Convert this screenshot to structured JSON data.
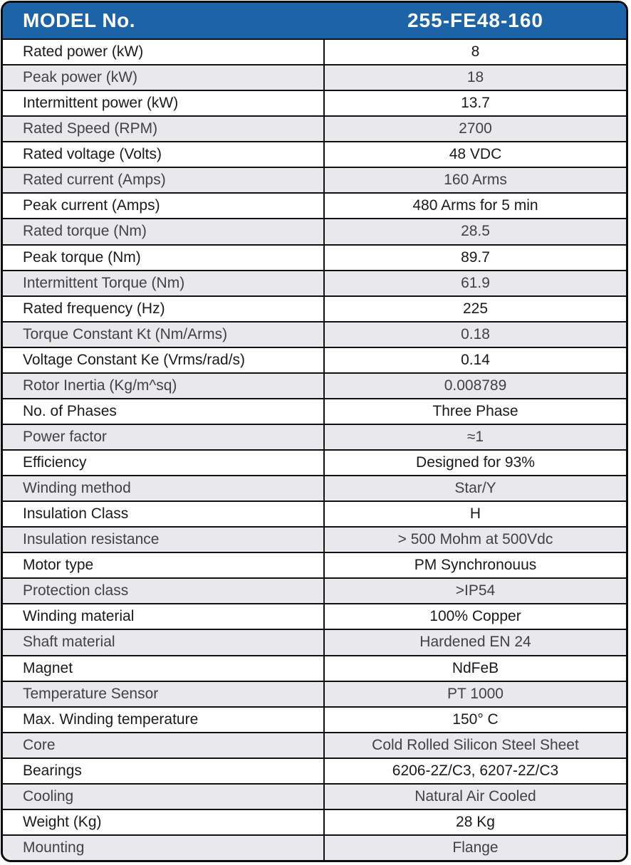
{
  "accent_color": "#1d63a8",
  "alt_row_color": "#e8e8ed",
  "header": {
    "label": "MODEL No.",
    "model": "255-FE48-160"
  },
  "table": {
    "rows": [
      {
        "label": "Rated power (kW)",
        "value": "8"
      },
      {
        "label": "Peak power (kW)",
        "value": "18"
      },
      {
        "label": "Intermittent power (kW)",
        "value": "13.7"
      },
      {
        "label": "Rated Speed (RPM)",
        "value": "2700"
      },
      {
        "label": "Rated voltage (Volts)",
        "value": "48 VDC"
      },
      {
        "label": "Rated current (Amps)",
        "value": "160 Arms"
      },
      {
        "label": "Peak current (Amps)",
        "value": "480 Arms for 5 min"
      },
      {
        "label": "Rated torque (Nm)",
        "value": "28.5"
      },
      {
        "label": "Peak torque (Nm)",
        "value": "89.7"
      },
      {
        "label": "Intermittent Torque (Nm)",
        "value": "61.9"
      },
      {
        "label": "Rated frequency (Hz)",
        "value": "225"
      },
      {
        "label": "Torque Constant Kt (Nm/Arms)",
        "value": "0.18"
      },
      {
        "label": "Voltage Constant Ke (Vrms/rad/s)",
        "value": "0.14"
      },
      {
        "label": "Rotor Inertia (Kg/m^sq)",
        "value": "0.008789"
      },
      {
        "label": "No. of Phases",
        "value": "Three Phase"
      },
      {
        "label": "Power factor",
        "value": "≈1"
      },
      {
        "label": "Efficiency",
        "value": "Designed for 93%"
      },
      {
        "label": "Winding method",
        "value": "Star/Y"
      },
      {
        "label": "Insulation Class",
        "value": "H"
      },
      {
        "label": "Insulation resistance",
        "value": "> 500 Mohm at 500Vdc"
      },
      {
        "label": "Motor type",
        "value": "PM Synchronouus"
      },
      {
        "label": "Protection class",
        "value": ">IP54"
      },
      {
        "label": "Winding material",
        "value": "100% Copper"
      },
      {
        "label": "Shaft material",
        "value": "Hardened EN 24"
      },
      {
        "label": "Magnet",
        "value": "NdFeB"
      },
      {
        "label": "Temperature Sensor",
        "value": "PT 1000"
      },
      {
        "label": "Max. Winding temperature",
        "value": "150° C"
      },
      {
        "label": "Core",
        "value": "Cold Rolled Silicon Steel Sheet"
      },
      {
        "label": "Bearings",
        "value": "6206-2Z/C3, 6207-2Z/C3"
      },
      {
        "label": "Cooling",
        "value": "Natural Air Cooled"
      },
      {
        "label": "Weight (Kg)",
        "value": "28 Kg"
      },
      {
        "label": "Mounting",
        "value": "Flange"
      }
    ]
  }
}
